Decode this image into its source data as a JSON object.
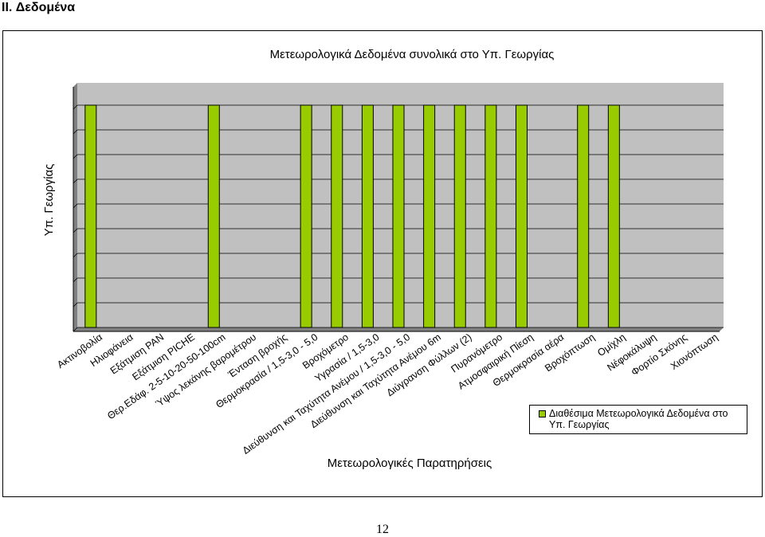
{
  "page": {
    "section_title": "II. Δεδομένα",
    "page_number": "12"
  },
  "chart_data": {
    "type": "bar",
    "title": "Μετεωρολογικά Δεδομένα συνολικά στο Υπ. Γεωργίας",
    "xlabel": "Μετεωρολογικές Παρατηρήσεις",
    "ylabel": "Υπ. Γεωργίας",
    "categories": [
      "Ακτινοβολία",
      "Ηλιοφάνεια",
      "Εξάτμιση PAN",
      "Εξάτμιση PICHE",
      "Θερ.Εδάφ. 2-5-10-20-50-100cm",
      "Ύψος λεκάνης βαρομέτρου",
      "Ένταση βροχής",
      "Θερμοκρασία / 1,5-3,0 - 5,0",
      "Βροχόμετρο",
      "Υγρασία / 1,5-3,0",
      "Διεύθυνση και Ταχύτητα Ανέμου / 1,5-3,0 - 5,0",
      "Διεύθυνση και Ταχύτητα Ανέμου 6m",
      "Διύγρανση Φύλλων (2)",
      "Πυρανόμετρο",
      "Ατμοσφαιρική Πίεση",
      "Θερμοκρασία αέρα",
      "Βροχόπτωση",
      "Ομίχλη",
      "Νέφοκάλυψη",
      "Φορτίο Σκόνης",
      "Χιονόπτωση"
    ],
    "series": [
      {
        "name": "Διαθέσιμα Μετεωρολογικά Δεδομένα στο Υπ. Γεωργίας",
        "color": "#99cc00",
        "values": [
          1,
          0,
          0,
          0,
          1,
          0,
          0,
          1,
          1,
          1,
          1,
          1,
          1,
          1,
          1,
          0,
          1,
          1,
          0,
          0,
          0
        ]
      }
    ],
    "ylim": [
      0,
      1
    ],
    "grid": true,
    "legend_position": "bottom-right",
    "plot_background": "#c0c0c0"
  }
}
